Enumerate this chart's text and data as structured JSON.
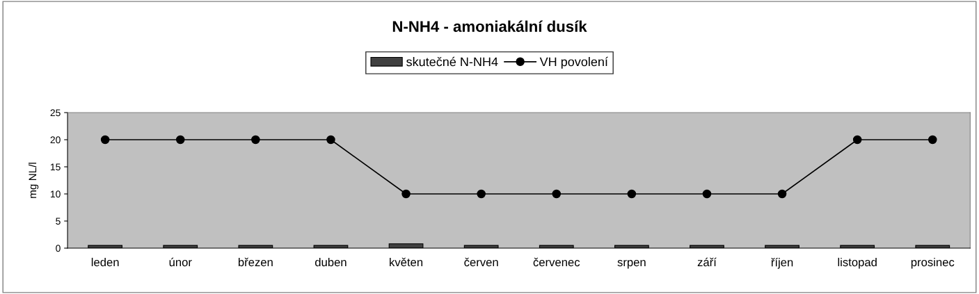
{
  "chart_data": {
    "type": "bar",
    "title": "N-NH4 - amoniakální dusík",
    "ylabel": "mg NL/l",
    "categories": [
      "leden",
      "únor",
      "březen",
      "duben",
      "květen",
      "červen",
      "červenec",
      "srpen",
      "září",
      "říjen",
      "listopad",
      "prosinec"
    ],
    "series": [
      {
        "name": "skutečné N-NH4",
        "color": "#404040",
        "values": [
          0.5,
          0.5,
          0.5,
          0.5,
          0.8,
          0.5,
          0.5,
          0.5,
          0.5,
          0.5,
          0.5,
          0.5
        ]
      },
      {
        "name": "VH povolení",
        "type": "line",
        "color": "#000000",
        "marker": "circle",
        "values": [
          20,
          20,
          20,
          20,
          10,
          10,
          10,
          10,
          10,
          10,
          20,
          20
        ]
      }
    ],
    "ylim": [
      0,
      25
    ],
    "yticks": [
      0,
      5,
      10,
      15,
      20,
      25
    ],
    "grid": false,
    "legend": "top"
  }
}
